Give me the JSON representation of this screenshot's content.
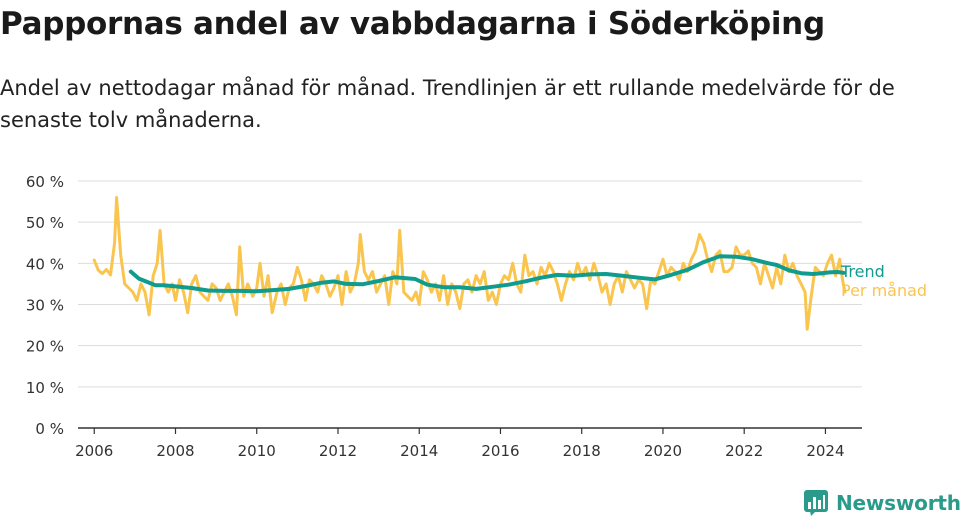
{
  "title": "Pappornas andel av vabbdagarna i Söderköping",
  "subtitle": "Andel av nettodagar månad för månad. Trendlinjen är ett rullande medelvärde för de senaste tolv månaderna.",
  "brand": "Newsworthy",
  "colors": {
    "trend": "#0f9b8e",
    "monthly": "#f9c54f",
    "axis": "#333333",
    "grid": "#dddddd",
    "brand": "#2a9b8a"
  },
  "chart_data": {
    "type": "line",
    "ylim": [
      0,
      60
    ],
    "yticks": [
      0,
      10,
      20,
      30,
      40,
      50,
      60
    ],
    "ytick_labels": [
      "0 %",
      "10 %",
      "20 %",
      "30 %",
      "40 %",
      "50 %",
      "60 %"
    ],
    "xlim": [
      2005.6,
      2024.9
    ],
    "xticks": [
      2006,
      2008,
      2010,
      2012,
      2014,
      2016,
      2018,
      2020,
      2022,
      2024
    ],
    "xtick_labels": [
      "2006",
      "2008",
      "2010",
      "2012",
      "2014",
      "2016",
      "2018",
      "2020",
      "2022",
      "2024"
    ],
    "grid": true,
    "legend": "end-of-line labels, right",
    "series": [
      {
        "name": "Trend",
        "color": "#0f9b8e",
        "points": [
          [
            2006.9,
            38.0
          ],
          [
            2007.1,
            36.3
          ],
          [
            2007.3,
            35.5
          ],
          [
            2007.5,
            34.7
          ],
          [
            2007.7,
            34.7
          ],
          [
            2008.0,
            34.4
          ],
          [
            2008.4,
            34.0
          ],
          [
            2008.8,
            33.4
          ],
          [
            2009.2,
            33.3
          ],
          [
            2009.6,
            33.3
          ],
          [
            2010.0,
            33.2
          ],
          [
            2010.4,
            33.5
          ],
          [
            2010.8,
            33.8
          ],
          [
            2011.2,
            34.5
          ],
          [
            2011.6,
            35.3
          ],
          [
            2011.9,
            35.6
          ],
          [
            2012.2,
            35.0
          ],
          [
            2012.6,
            34.9
          ],
          [
            2013.0,
            35.7
          ],
          [
            2013.4,
            36.6
          ],
          [
            2013.9,
            36.2
          ],
          [
            2014.2,
            34.8
          ],
          [
            2014.6,
            34.2
          ],
          [
            2015.0,
            34.2
          ],
          [
            2015.4,
            33.8
          ],
          [
            2015.8,
            34.3
          ],
          [
            2016.2,
            34.8
          ],
          [
            2016.6,
            35.6
          ],
          [
            2017.0,
            36.5
          ],
          [
            2017.4,
            37.2
          ],
          [
            2017.8,
            37.0
          ],
          [
            2018.2,
            37.3
          ],
          [
            2018.6,
            37.4
          ],
          [
            2019.0,
            37.0
          ],
          [
            2019.4,
            36.5
          ],
          [
            2019.8,
            36.1
          ],
          [
            2020.2,
            37.2
          ],
          [
            2020.6,
            38.4
          ],
          [
            2021.0,
            40.3
          ],
          [
            2021.4,
            41.7
          ],
          [
            2021.8,
            41.6
          ],
          [
            2022.2,
            41.0
          ],
          [
            2022.6,
            40.0
          ],
          [
            2022.8,
            39.6
          ],
          [
            2023.1,
            38.3
          ],
          [
            2023.4,
            37.6
          ],
          [
            2023.7,
            37.4
          ],
          [
            2023.9,
            37.6
          ],
          [
            2024.1,
            37.8
          ],
          [
            2024.3,
            37.9
          ],
          [
            2024.45,
            37.7
          ]
        ]
      },
      {
        "name": "Per månad",
        "color": "#f9c54f",
        "points": [
          [
            2006.0,
            40.8
          ],
          [
            2006.1,
            38.3
          ],
          [
            2006.2,
            37.5
          ],
          [
            2006.3,
            38.5
          ],
          [
            2006.4,
            37.2
          ],
          [
            2006.5,
            45.0
          ],
          [
            2006.55,
            56.0
          ],
          [
            2006.65,
            42.0
          ],
          [
            2006.75,
            35.0
          ],
          [
            2006.85,
            34.0
          ],
          [
            2006.95,
            33.0
          ],
          [
            2007.05,
            31.0
          ],
          [
            2007.15,
            35.0
          ],
          [
            2007.25,
            33.0
          ],
          [
            2007.35,
            27.5
          ],
          [
            2007.45,
            37.0
          ],
          [
            2007.55,
            40.0
          ],
          [
            2007.62,
            48.0
          ],
          [
            2007.72,
            35.0
          ],
          [
            2007.82,
            33.0
          ],
          [
            2007.92,
            35.0
          ],
          [
            2008.0,
            31.0
          ],
          [
            2008.1,
            36.0
          ],
          [
            2008.2,
            33.0
          ],
          [
            2008.3,
            28.0
          ],
          [
            2008.4,
            35.0
          ],
          [
            2008.5,
            37.0
          ],
          [
            2008.6,
            33.0
          ],
          [
            2008.7,
            32.0
          ],
          [
            2008.8,
            31.0
          ],
          [
            2008.9,
            35.0
          ],
          [
            2009.0,
            34.0
          ],
          [
            2009.1,
            31.0
          ],
          [
            2009.2,
            33.0
          ],
          [
            2009.3,
            35.0
          ],
          [
            2009.4,
            32.0
          ],
          [
            2009.5,
            27.5
          ],
          [
            2009.58,
            44.0
          ],
          [
            2009.68,
            32.0
          ],
          [
            2009.78,
            35.0
          ],
          [
            2009.9,
            32.0
          ],
          [
            2010.0,
            34.0
          ],
          [
            2010.08,
            40.0
          ],
          [
            2010.18,
            32.0
          ],
          [
            2010.28,
            37.0
          ],
          [
            2010.38,
            28.0
          ],
          [
            2010.5,
            33.0
          ],
          [
            2010.6,
            35.0
          ],
          [
            2010.7,
            30.0
          ],
          [
            2010.8,
            34.0
          ],
          [
            2010.9,
            35.0
          ],
          [
            2011.0,
            39.0
          ],
          [
            2011.1,
            36.0
          ],
          [
            2011.2,
            31.0
          ],
          [
            2011.3,
            36.0
          ],
          [
            2011.4,
            35.0
          ],
          [
            2011.5,
            33.0
          ],
          [
            2011.6,
            37.0
          ],
          [
            2011.7,
            35.0
          ],
          [
            2011.8,
            32.0
          ],
          [
            2011.9,
            34.0
          ],
          [
            2012.0,
            37.0
          ],
          [
            2012.1,
            30.0
          ],
          [
            2012.2,
            38.0
          ],
          [
            2012.3,
            33.0
          ],
          [
            2012.4,
            35.0
          ],
          [
            2012.5,
            40.0
          ],
          [
            2012.55,
            47.0
          ],
          [
            2012.65,
            38.0
          ],
          [
            2012.75,
            36.0
          ],
          [
            2012.85,
            38.0
          ],
          [
            2012.95,
            33.0
          ],
          [
            2013.05,
            35.0
          ],
          [
            2013.15,
            37.0
          ],
          [
            2013.25,
            30.0
          ],
          [
            2013.35,
            38.0
          ],
          [
            2013.45,
            35.0
          ],
          [
            2013.52,
            48.0
          ],
          [
            2013.62,
            33.0
          ],
          [
            2013.72,
            32.0
          ],
          [
            2013.82,
            31.0
          ],
          [
            2013.92,
            33.0
          ],
          [
            2014.0,
            30.0
          ],
          [
            2014.1,
            38.0
          ],
          [
            2014.2,
            36.0
          ],
          [
            2014.3,
            33.0
          ],
          [
            2014.4,
            35.0
          ],
          [
            2014.5,
            31.0
          ],
          [
            2014.6,
            37.0
          ],
          [
            2014.7,
            30.0
          ],
          [
            2014.8,
            35.0
          ],
          [
            2014.9,
            33.0
          ],
          [
            2015.0,
            29.0
          ],
          [
            2015.1,
            35.0
          ],
          [
            2015.2,
            36.0
          ],
          [
            2015.3,
            33.0
          ],
          [
            2015.4,
            37.0
          ],
          [
            2015.5,
            35.0
          ],
          [
            2015.6,
            38.0
          ],
          [
            2015.7,
            31.0
          ],
          [
            2015.8,
            33.0
          ],
          [
            2015.9,
            30.0
          ],
          [
            2016.0,
            35.0
          ],
          [
            2016.1,
            37.0
          ],
          [
            2016.2,
            36.0
          ],
          [
            2016.3,
            40.0
          ],
          [
            2016.4,
            35.0
          ],
          [
            2016.5,
            33.0
          ],
          [
            2016.6,
            42.0
          ],
          [
            2016.7,
            37.0
          ],
          [
            2016.8,
            38.0
          ],
          [
            2016.9,
            35.0
          ],
          [
            2017.0,
            39.0
          ],
          [
            2017.1,
            37.0
          ],
          [
            2017.2,
            40.0
          ],
          [
            2017.3,
            38.0
          ],
          [
            2017.4,
            35.0
          ],
          [
            2017.5,
            31.0
          ],
          [
            2017.6,
            35.0
          ],
          [
            2017.7,
            38.0
          ],
          [
            2017.8,
            36.0
          ],
          [
            2017.9,
            40.0
          ],
          [
            2018.0,
            37.0
          ],
          [
            2018.1,
            39.0
          ],
          [
            2018.2,
            36.0
          ],
          [
            2018.3,
            40.0
          ],
          [
            2018.4,
            37.0
          ],
          [
            2018.5,
            33.0
          ],
          [
            2018.6,
            35.0
          ],
          [
            2018.7,
            30.0
          ],
          [
            2018.8,
            35.0
          ],
          [
            2018.9,
            37.0
          ],
          [
            2019.0,
            33.0
          ],
          [
            2019.1,
            38.0
          ],
          [
            2019.2,
            36.0
          ],
          [
            2019.3,
            34.0
          ],
          [
            2019.4,
            36.0
          ],
          [
            2019.5,
            35.0
          ],
          [
            2019.6,
            29.0
          ],
          [
            2019.7,
            36.0
          ],
          [
            2019.8,
            35.0
          ],
          [
            2019.9,
            38.0
          ],
          [
            2020.0,
            41.0
          ],
          [
            2020.1,
            37.0
          ],
          [
            2020.2,
            39.0
          ],
          [
            2020.3,
            38.0
          ],
          [
            2020.4,
            36.0
          ],
          [
            2020.5,
            40.0
          ],
          [
            2020.6,
            38.0
          ],
          [
            2020.7,
            41.0
          ],
          [
            2020.8,
            43.0
          ],
          [
            2020.9,
            47.0
          ],
          [
            2021.0,
            45.0
          ],
          [
            2021.1,
            41.0
          ],
          [
            2021.2,
            38.0
          ],
          [
            2021.3,
            42.0
          ],
          [
            2021.4,
            43.0
          ],
          [
            2021.5,
            38.0
          ],
          [
            2021.6,
            38.0
          ],
          [
            2021.7,
            39.0
          ],
          [
            2021.8,
            44.0
          ],
          [
            2021.9,
            42.0
          ],
          [
            2022.0,
            42.0
          ],
          [
            2022.1,
            43.0
          ],
          [
            2022.2,
            40.0
          ],
          [
            2022.3,
            39.0
          ],
          [
            2022.4,
            35.0
          ],
          [
            2022.5,
            40.0
          ],
          [
            2022.6,
            37.0
          ],
          [
            2022.7,
            34.0
          ],
          [
            2022.8,
            39.0
          ],
          [
            2022.9,
            35.0
          ],
          [
            2023.0,
            42.0
          ],
          [
            2023.1,
            38.0
          ],
          [
            2023.2,
            40.0
          ],
          [
            2023.3,
            37.0
          ],
          [
            2023.4,
            35.0
          ],
          [
            2023.5,
            33.0
          ],
          [
            2023.55,
            24.0
          ],
          [
            2023.65,
            32.0
          ],
          [
            2023.75,
            39.0
          ],
          [
            2023.85,
            38.0
          ],
          [
            2023.95,
            37.0
          ],
          [
            2024.05,
            40.0
          ],
          [
            2024.15,
            42.0
          ],
          [
            2024.25,
            37.0
          ],
          [
            2024.35,
            41.0
          ],
          [
            2024.42,
            36.0
          ],
          [
            2024.48,
            33.0
          ]
        ]
      }
    ]
  }
}
